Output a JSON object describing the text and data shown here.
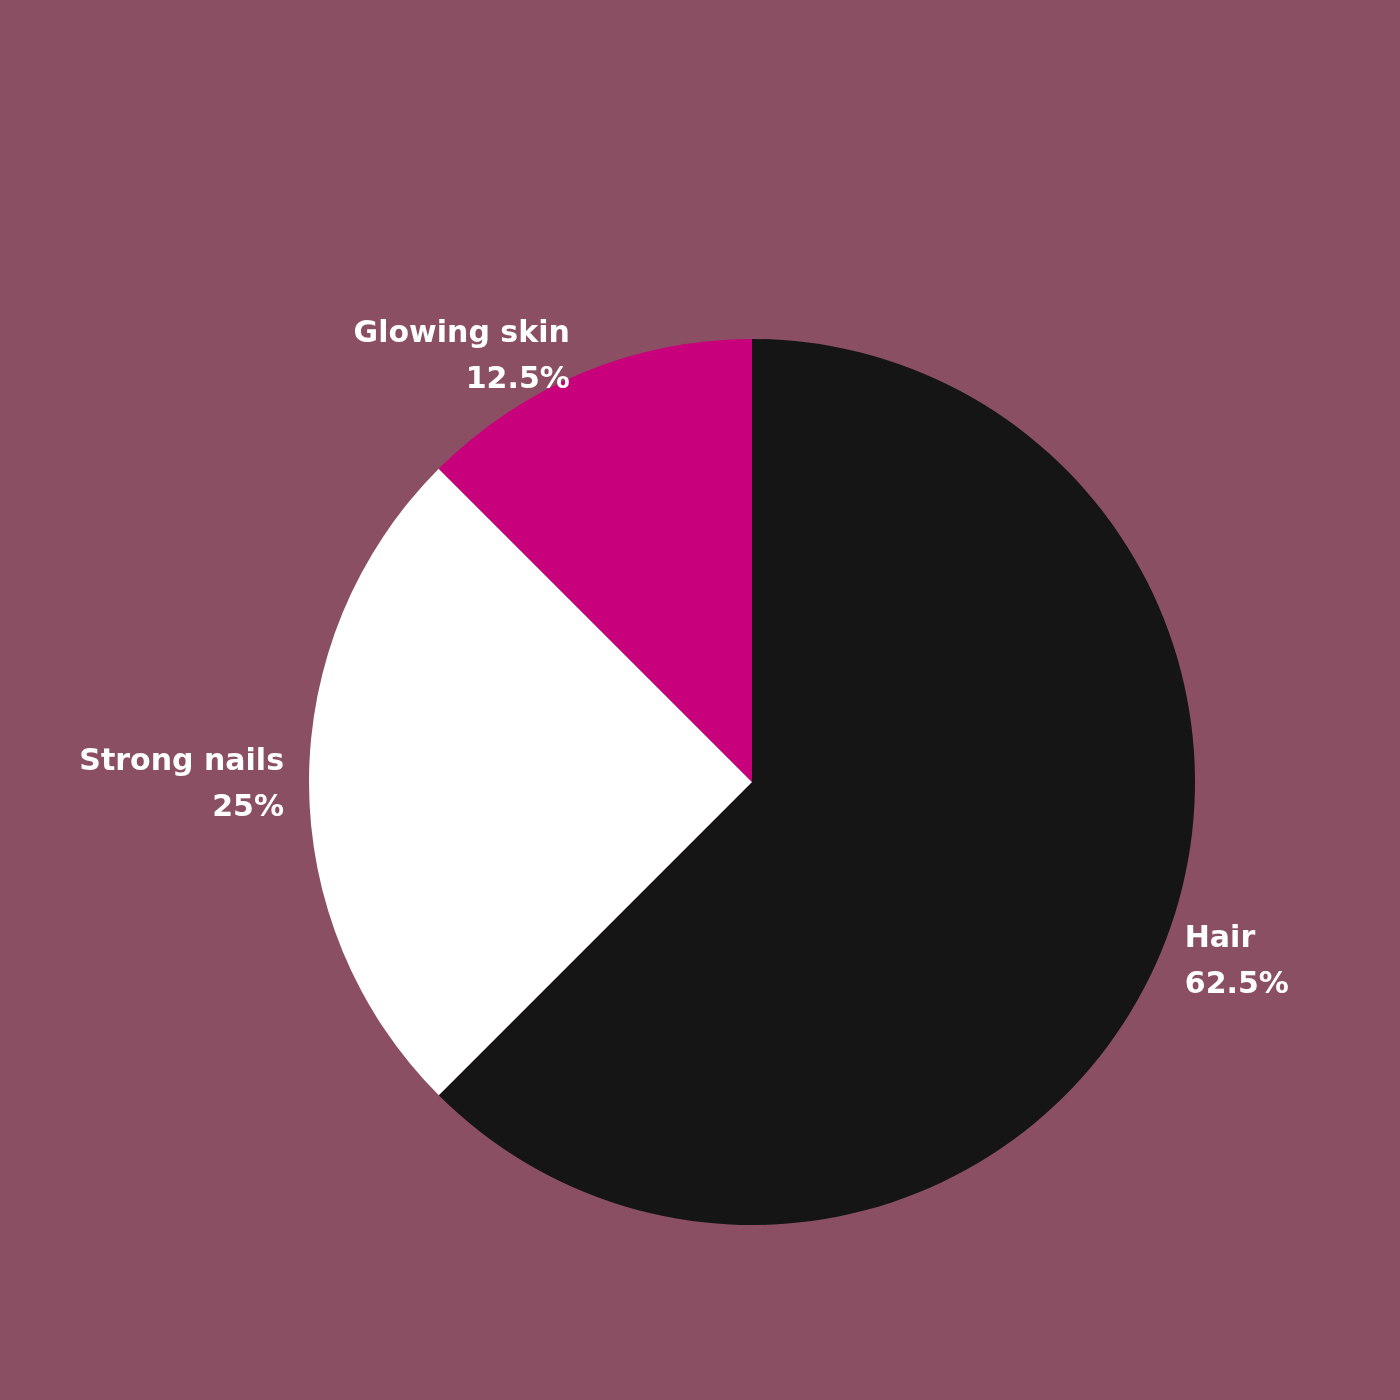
{
  "chart_data": {
    "type": "pie",
    "categories": [
      "Hair",
      "Strong nails",
      "Glowing skin"
    ],
    "values": [
      62.5,
      25,
      12.5
    ],
    "colors": [
      "#151515",
      "#ffffff",
      "#c9007b"
    ],
    "value_labels": [
      "62.5%",
      "25%",
      "12.5%"
    ]
  }
}
